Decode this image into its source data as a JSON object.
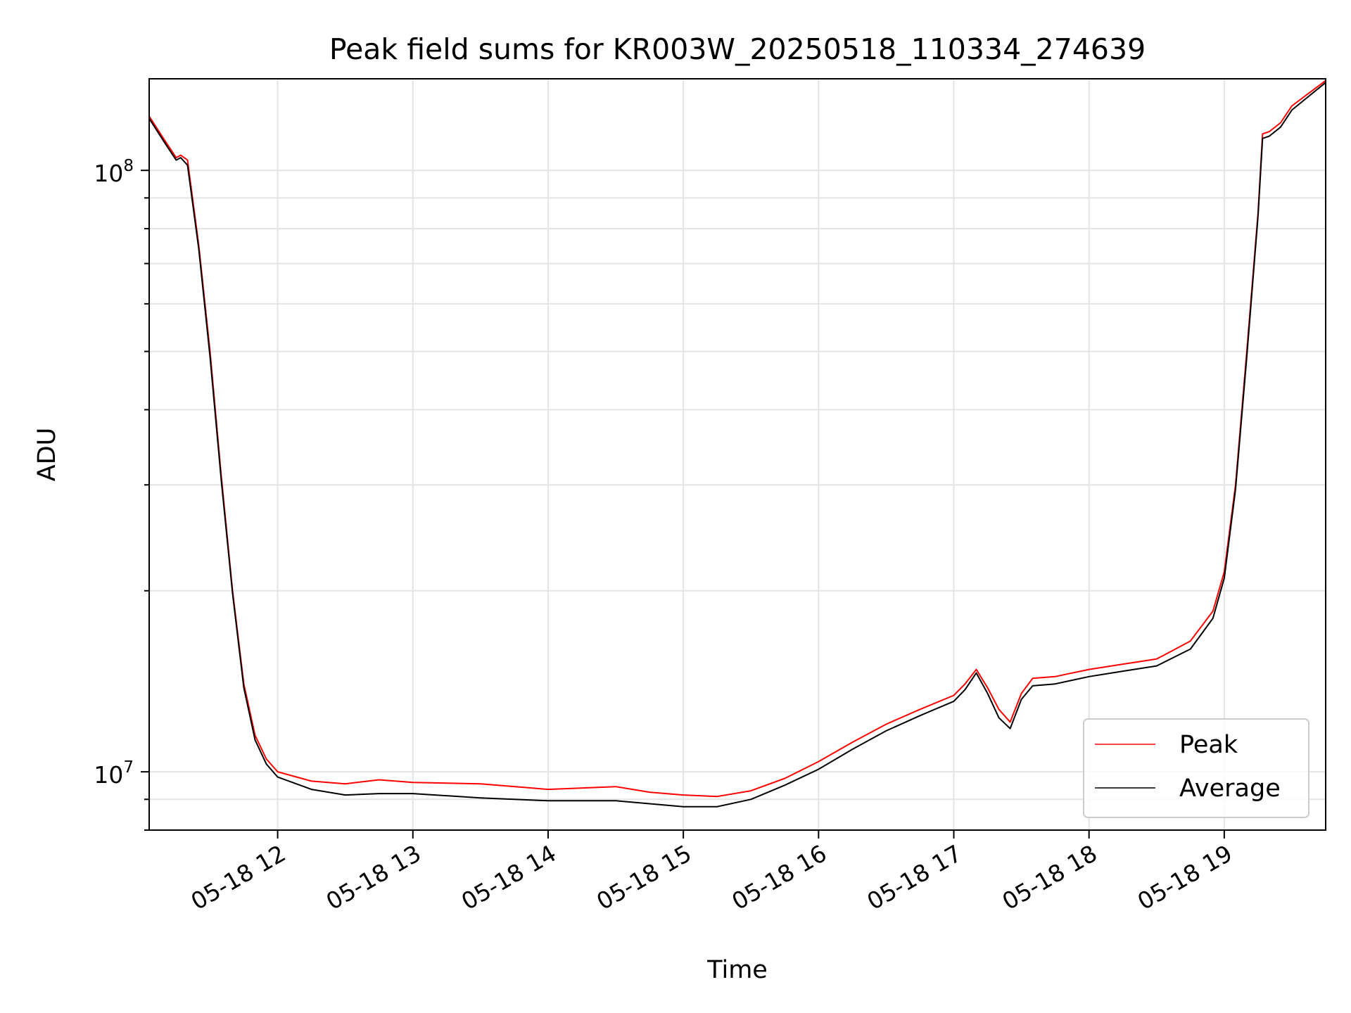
{
  "chart_data": {
    "type": "line",
    "title": "Peak field sums for KR003W_20250518_110334_274639",
    "xlabel": "Time",
    "ylabel": "ADU",
    "yscale": "log",
    "ylim": [
      8000000,
      142000000
    ],
    "xlim": [
      "2025-05-18 11:03",
      "2025-05-18 19:45"
    ],
    "grid": true,
    "legend_position": "lower right",
    "x_ticks": [
      {
        "label": "05-18 12",
        "value": "2025-05-18 12:00"
      },
      {
        "label": "05-18 13",
        "value": "2025-05-18 13:00"
      },
      {
        "label": "05-18 14",
        "value": "2025-05-18 14:00"
      },
      {
        "label": "05-18 15",
        "value": "2025-05-18 15:00"
      },
      {
        "label": "05-18 16",
        "value": "2025-05-18 16:00"
      },
      {
        "label": "05-18 17",
        "value": "2025-05-18 17:00"
      },
      {
        "label": "05-18 18",
        "value": "2025-05-18 18:00"
      },
      {
        "label": "05-18 19",
        "value": "2025-05-18 19:00"
      }
    ],
    "y_ticks": [
      {
        "base": "10",
        "exp": "7",
        "value": 10000000
      },
      {
        "base": "10",
        "exp": "8",
        "value": 100000000
      }
    ],
    "series": [
      {
        "name": "Peak",
        "color": "#ff0000",
        "points": [
          [
            "2025-05-18 11:03",
            123000000
          ],
          [
            "2025-05-18 11:10",
            112000000
          ],
          [
            "2025-05-18 11:15",
            105000000
          ],
          [
            "2025-05-18 11:17",
            106000000
          ],
          [
            "2025-05-18 11:20",
            104000000
          ],
          [
            "2025-05-18 11:25",
            75000000
          ],
          [
            "2025-05-18 11:30",
            50000000
          ],
          [
            "2025-05-18 11:35",
            31000000
          ],
          [
            "2025-05-18 11:40",
            20000000
          ],
          [
            "2025-05-18 11:45",
            14000000
          ],
          [
            "2025-05-18 11:50",
            11500000
          ],
          [
            "2025-05-18 11:55",
            10500000
          ],
          [
            "2025-05-18 12:00",
            10000000
          ],
          [
            "2025-05-18 12:15",
            9650000
          ],
          [
            "2025-05-18 12:30",
            9550000
          ],
          [
            "2025-05-18 12:45",
            9700000
          ],
          [
            "2025-05-18 13:00",
            9600000
          ],
          [
            "2025-05-18 13:30",
            9550000
          ],
          [
            "2025-05-18 14:00",
            9350000
          ],
          [
            "2025-05-18 14:30",
            9450000
          ],
          [
            "2025-05-18 14:45",
            9250000
          ],
          [
            "2025-05-18 15:00",
            9150000
          ],
          [
            "2025-05-18 15:15",
            9100000
          ],
          [
            "2025-05-18 15:30",
            9300000
          ],
          [
            "2025-05-18 15:45",
            9750000
          ],
          [
            "2025-05-18 16:00",
            10400000
          ],
          [
            "2025-05-18 16:15",
            11200000
          ],
          [
            "2025-05-18 16:30",
            12000000
          ],
          [
            "2025-05-18 16:45",
            12700000
          ],
          [
            "2025-05-18 17:00",
            13400000
          ],
          [
            "2025-05-18 17:05",
            14000000
          ],
          [
            "2025-05-18 17:10",
            14800000
          ],
          [
            "2025-05-18 17:15",
            13800000
          ],
          [
            "2025-05-18 17:20",
            12700000
          ],
          [
            "2025-05-18 17:25",
            12100000
          ],
          [
            "2025-05-18 17:30",
            13500000
          ],
          [
            "2025-05-18 17:35",
            14300000
          ],
          [
            "2025-05-18 17:45",
            14400000
          ],
          [
            "2025-05-18 18:00",
            14800000
          ],
          [
            "2025-05-18 18:15",
            15100000
          ],
          [
            "2025-05-18 18:30",
            15400000
          ],
          [
            "2025-05-18 18:45",
            16500000
          ],
          [
            "2025-05-18 18:55",
            18500000
          ],
          [
            "2025-05-18 19:00",
            21500000
          ],
          [
            "2025-05-18 19:05",
            30000000
          ],
          [
            "2025-05-18 19:10",
            50000000
          ],
          [
            "2025-05-18 19:15",
            85000000
          ],
          [
            "2025-05-18 19:17",
            115000000
          ],
          [
            "2025-05-18 19:20",
            116000000
          ],
          [
            "2025-05-18 19:25",
            120000000
          ],
          [
            "2025-05-18 19:30",
            128000000
          ],
          [
            "2025-05-18 19:45",
            141000000
          ]
        ]
      },
      {
        "name": "Average",
        "color": "#000000",
        "points": [
          [
            "2025-05-18 11:03",
            122000000
          ],
          [
            "2025-05-18 11:10",
            111000000
          ],
          [
            "2025-05-18 11:15",
            104000000
          ],
          [
            "2025-05-18 11:17",
            105000000
          ],
          [
            "2025-05-18 11:20",
            102000000
          ],
          [
            "2025-05-18 11:25",
            74000000
          ],
          [
            "2025-05-18 11:30",
            49000000
          ],
          [
            "2025-05-18 11:35",
            30500000
          ],
          [
            "2025-05-18 11:40",
            19800000
          ],
          [
            "2025-05-18 11:45",
            13800000
          ],
          [
            "2025-05-18 11:50",
            11300000
          ],
          [
            "2025-05-18 11:55",
            10300000
          ],
          [
            "2025-05-18 12:00",
            9800000
          ],
          [
            "2025-05-18 12:15",
            9350000
          ],
          [
            "2025-05-18 12:30",
            9150000
          ],
          [
            "2025-05-18 12:45",
            9200000
          ],
          [
            "2025-05-18 13:00",
            9200000
          ],
          [
            "2025-05-18 13:30",
            9050000
          ],
          [
            "2025-05-18 14:00",
            8950000
          ],
          [
            "2025-05-18 14:30",
            8950000
          ],
          [
            "2025-05-18 14:45",
            8850000
          ],
          [
            "2025-05-18 15:00",
            8750000
          ],
          [
            "2025-05-18 15:15",
            8750000
          ],
          [
            "2025-05-18 15:30",
            9000000
          ],
          [
            "2025-05-18 15:45",
            9500000
          ],
          [
            "2025-05-18 16:00",
            10100000
          ],
          [
            "2025-05-18 16:15",
            10900000
          ],
          [
            "2025-05-18 16:30",
            11700000
          ],
          [
            "2025-05-18 16:45",
            12400000
          ],
          [
            "2025-05-18 17:00",
            13100000
          ],
          [
            "2025-05-18 17:05",
            13700000
          ],
          [
            "2025-05-18 17:10",
            14600000
          ],
          [
            "2025-05-18 17:15",
            13500000
          ],
          [
            "2025-05-18 17:20",
            12300000
          ],
          [
            "2025-05-18 17:25",
            11800000
          ],
          [
            "2025-05-18 17:30",
            13200000
          ],
          [
            "2025-05-18 17:35",
            13900000
          ],
          [
            "2025-05-18 17:45",
            14000000
          ],
          [
            "2025-05-18 18:00",
            14400000
          ],
          [
            "2025-05-18 18:15",
            14700000
          ],
          [
            "2025-05-18 18:30",
            15000000
          ],
          [
            "2025-05-18 18:45",
            16000000
          ],
          [
            "2025-05-18 18:55",
            18000000
          ],
          [
            "2025-05-18 19:00",
            21000000
          ],
          [
            "2025-05-18 19:05",
            29500000
          ],
          [
            "2025-05-18 19:10",
            49000000
          ],
          [
            "2025-05-18 19:15",
            84000000
          ],
          [
            "2025-05-18 19:17",
            113000000
          ],
          [
            "2025-05-18 19:20",
            114000000
          ],
          [
            "2025-05-18 19:25",
            118000000
          ],
          [
            "2025-05-18 19:30",
            126000000
          ],
          [
            "2025-05-18 19:45",
            140000000
          ]
        ]
      }
    ]
  }
}
